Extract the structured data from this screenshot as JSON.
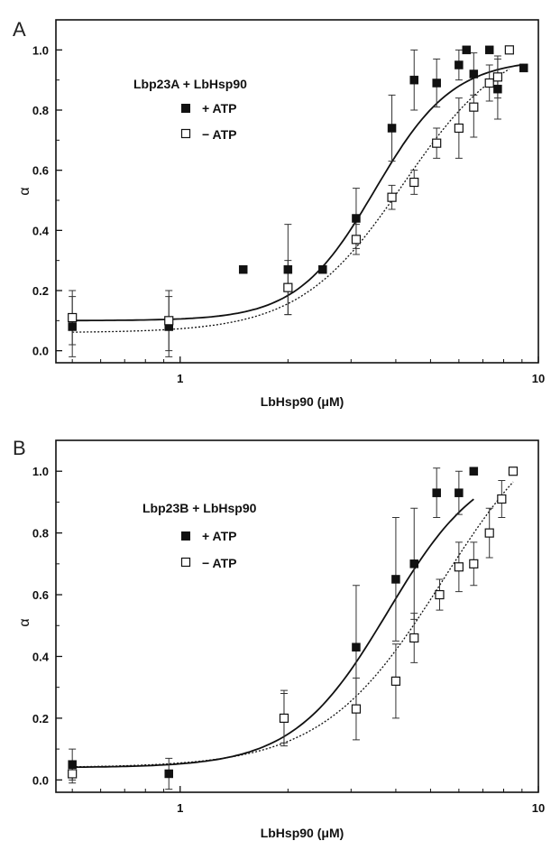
{
  "chart_data": [
    {
      "panel_label": "A",
      "type": "scatter",
      "xlabel": "LbHsp90 (μM)",
      "ylabel": "α",
      "xscale": "log",
      "xlim": [
        0.45,
        10
      ],
      "ylim": [
        -0.04,
        1.1
      ],
      "xticks": [
        1,
        10
      ],
      "xtick_labels": [
        "1",
        "10"
      ],
      "yticks": [
        0.0,
        0.2,
        0.4,
        0.6,
        0.8,
        1.0
      ],
      "ytick_labels": [
        "0.0",
        "0.2",
        "0.4",
        "0.6",
        "0.8",
        "1.0"
      ],
      "legend_title": "Lbp23A + LbHsp90",
      "legend_position": "upper-left",
      "series": [
        {
          "name": "+ ATP",
          "marker": "filled-square",
          "line": "solid",
          "color": "#111111",
          "points": [
            {
              "x": 0.5,
              "y": 0.08,
              "err": 0.1
            },
            {
              "x": 0.93,
              "y": 0.08,
              "err": 0.1
            },
            {
              "x": 1.5,
              "y": 0.27,
              "err": 0
            },
            {
              "x": 2.0,
              "y": 0.27,
              "err": 0.15
            },
            {
              "x": 2.5,
              "y": 0.27,
              "err": 0
            },
            {
              "x": 3.1,
              "y": 0.44,
              "err": 0.1
            },
            {
              "x": 3.9,
              "y": 0.74,
              "err": 0.11
            },
            {
              "x": 4.5,
              "y": 0.9,
              "err": 0.1
            },
            {
              "x": 5.2,
              "y": 0.89,
              "err": 0.08
            },
            {
              "x": 6.0,
              "y": 0.95,
              "err": 0.05
            },
            {
              "x": 6.3,
              "y": 1.0,
              "err": 0
            },
            {
              "x": 6.6,
              "y": 0.92,
              "err": 0.07
            },
            {
              "x": 7.3,
              "y": 1.0,
              "err": 0
            },
            {
              "x": 7.7,
              "y": 0.87,
              "err": 0.1
            },
            {
              "x": 9.1,
              "y": 0.94,
              "err": 0
            }
          ],
          "fit": {
            "bottom": 0.1,
            "top": 0.97,
            "x50": 3.5,
            "hill": 4.0
          }
        },
        {
          "name": "− ATP",
          "marker": "open-square",
          "line": "dotted",
          "color": "#111111",
          "points": [
            {
              "x": 0.5,
              "y": 0.11,
              "err": 0.09
            },
            {
              "x": 0.93,
              "y": 0.1,
              "err": 0.1
            },
            {
              "x": 2.0,
              "y": 0.21,
              "err": 0.09
            },
            {
              "x": 3.1,
              "y": 0.37,
              "err": 0.05
            },
            {
              "x": 3.9,
              "y": 0.51,
              "err": 0.04
            },
            {
              "x": 4.5,
              "y": 0.56,
              "err": 0.04
            },
            {
              "x": 5.2,
              "y": 0.69,
              "err": 0.05
            },
            {
              "x": 6.0,
              "y": 0.74,
              "err": 0.1
            },
            {
              "x": 6.6,
              "y": 0.81,
              "err": 0.1
            },
            {
              "x": 7.3,
              "y": 0.89,
              "err": 0.06
            },
            {
              "x": 7.7,
              "y": 0.91,
              "err": 0.07
            },
            {
              "x": 8.3,
              "y": 1.0,
              "err": 0
            }
          ],
          "fit": {
            "bottom": 0.06,
            "top": 1.05,
            "x50": 4.2,
            "hill": 3.0
          }
        }
      ]
    },
    {
      "panel_label": "B",
      "type": "scatter",
      "xlabel": "LbHsp90 (μM)",
      "ylabel": "α",
      "xscale": "log",
      "xlim": [
        0.45,
        10
      ],
      "ylim": [
        -0.04,
        1.1
      ],
      "xticks": [
        1,
        10
      ],
      "xtick_labels": [
        "1",
        "10"
      ],
      "yticks": [
        0.0,
        0.2,
        0.4,
        0.6,
        0.8,
        1.0
      ],
      "ytick_labels": [
        "0.0",
        "0.2",
        "0.4",
        "0.6",
        "0.8",
        "1.0"
      ],
      "legend_title": "Lbp23B + LbHsp90",
      "legend_position": "upper-left",
      "series": [
        {
          "name": "+ ATP",
          "marker": "filled-square",
          "line": "solid",
          "color": "#111111",
          "points": [
            {
              "x": 0.5,
              "y": 0.05,
              "err": 0.05
            },
            {
              "x": 0.93,
              "y": 0.02,
              "err": 0.05
            },
            {
              "x": 1.95,
              "y": 0.2,
              "err": 0.09
            },
            {
              "x": 3.1,
              "y": 0.43,
              "err": 0.2
            },
            {
              "x": 4.0,
              "y": 0.65,
              "err": 0.2
            },
            {
              "x": 4.5,
              "y": 0.7,
              "err": 0.18
            },
            {
              "x": 5.2,
              "y": 0.93,
              "err": 0.08
            },
            {
              "x": 6.0,
              "y": 0.93,
              "err": 0.07
            },
            {
              "x": 6.6,
              "y": 1.0,
              "err": 0
            }
          ],
          "fit": {
            "bottom": 0.04,
            "top": 1.05,
            "x50": 3.8,
            "hill": 3.3
          }
        },
        {
          "name": "− ATP",
          "marker": "open-square",
          "line": "dotted",
          "color": "#111111",
          "points": [
            {
              "x": 0.5,
              "y": 0.02,
              "err": 0.03
            },
            {
              "x": 1.95,
              "y": 0.2,
              "err": 0.08
            },
            {
              "x": 3.1,
              "y": 0.23,
              "err": 0.1
            },
            {
              "x": 4.0,
              "y": 0.32,
              "err": 0.12
            },
            {
              "x": 4.5,
              "y": 0.46,
              "err": 0.08
            },
            {
              "x": 5.3,
              "y": 0.6,
              "err": 0.05
            },
            {
              "x": 6.0,
              "y": 0.69,
              "err": 0.08
            },
            {
              "x": 6.6,
              "y": 0.7,
              "err": 0.07
            },
            {
              "x": 7.3,
              "y": 0.8,
              "err": 0.08
            },
            {
              "x": 7.9,
              "y": 0.91,
              "err": 0.06
            },
            {
              "x": 8.5,
              "y": 1.0,
              "err": 0
            }
          ],
          "fit": {
            "bottom": 0.04,
            "top": 1.25,
            "x50": 5.4,
            "hill": 2.6
          }
        }
      ]
    }
  ]
}
